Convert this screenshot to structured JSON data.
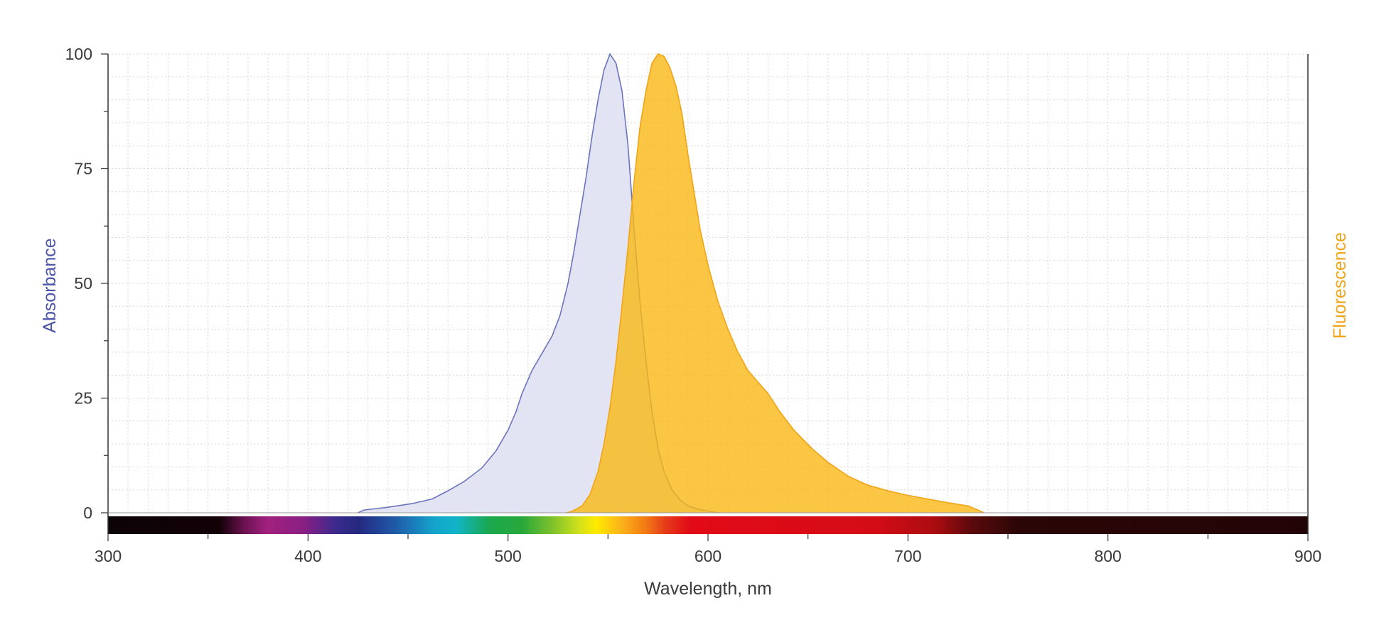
{
  "chart_data": {
    "type": "area",
    "xlabel": "Wavelength, nm",
    "ylabel_left": "Absorbance",
    "ylabel_right": "Fluorescence",
    "xlim": [
      300,
      900
    ],
    "ylim": [
      0,
      100
    ],
    "x_ticks": [
      300,
      400,
      500,
      600,
      700,
      800,
      900
    ],
    "y_ticks": [
      0,
      25,
      50,
      75,
      100
    ],
    "grid": true,
    "spectrum_bar": true,
    "series": [
      {
        "name": "Absorbance",
        "color": "#6b74bd",
        "fill": "#e2e4f4",
        "points": [
          [
            425,
            0
          ],
          [
            428,
            0.6
          ],
          [
            440,
            1.2
          ],
          [
            452,
            2
          ],
          [
            462,
            3
          ],
          [
            470,
            4.8
          ],
          [
            478,
            6.8
          ],
          [
            487,
            9.8
          ],
          [
            494,
            13.5
          ],
          [
            500,
            18
          ],
          [
            504,
            22
          ],
          [
            507,
            26
          ],
          [
            512,
            31
          ],
          [
            518,
            35.5
          ],
          [
            522,
            38.5
          ],
          [
            526,
            43
          ],
          [
            530,
            50
          ],
          [
            533,
            57
          ],
          [
            536,
            65
          ],
          [
            539,
            73
          ],
          [
            542,
            82
          ],
          [
            545,
            90
          ],
          [
            548,
            96.5
          ],
          [
            551,
            100
          ],
          [
            554,
            98
          ],
          [
            557,
            92
          ],
          [
            560,
            80
          ],
          [
            563,
            62
          ],
          [
            566,
            46
          ],
          [
            569,
            33
          ],
          [
            572,
            22
          ],
          [
            575,
            14
          ],
          [
            578,
            9
          ],
          [
            582,
            5
          ],
          [
            586,
            2.8
          ],
          [
            590,
            1.5
          ],
          [
            595,
            0.8
          ],
          [
            600,
            0.4
          ],
          [
            605,
            0
          ]
        ]
      },
      {
        "name": "Fluorescence",
        "color": "#f2a417",
        "fill": "#f9b814",
        "points": [
          [
            529,
            0
          ],
          [
            532,
            0.3
          ],
          [
            537,
            1.5
          ],
          [
            541,
            4
          ],
          [
            545,
            9
          ],
          [
            548,
            15
          ],
          [
            551,
            23
          ],
          [
            554,
            33
          ],
          [
            557,
            45
          ],
          [
            560,
            58
          ],
          [
            563,
            72
          ],
          [
            566,
            84
          ],
          [
            569,
            92
          ],
          [
            572,
            98
          ],
          [
            575,
            100
          ],
          [
            578,
            99.5
          ],
          [
            581,
            97
          ],
          [
            584,
            93
          ],
          [
            587,
            87
          ],
          [
            590,
            78
          ],
          [
            593,
            70
          ],
          [
            596,
            62
          ],
          [
            600,
            54
          ],
          [
            605,
            46
          ],
          [
            610,
            40
          ],
          [
            615,
            35
          ],
          [
            620,
            31
          ],
          [
            625,
            28.5
          ],
          [
            630,
            26
          ],
          [
            636,
            22
          ],
          [
            643,
            18
          ],
          [
            652,
            14
          ],
          [
            660,
            11
          ],
          [
            670,
            8
          ],
          [
            680,
            6
          ],
          [
            690,
            4.8
          ],
          [
            700,
            3.8
          ],
          [
            710,
            3
          ],
          [
            720,
            2.2
          ],
          [
            730,
            1.5
          ],
          [
            735,
            0.6
          ],
          [
            738,
            0
          ]
        ]
      }
    ]
  }
}
